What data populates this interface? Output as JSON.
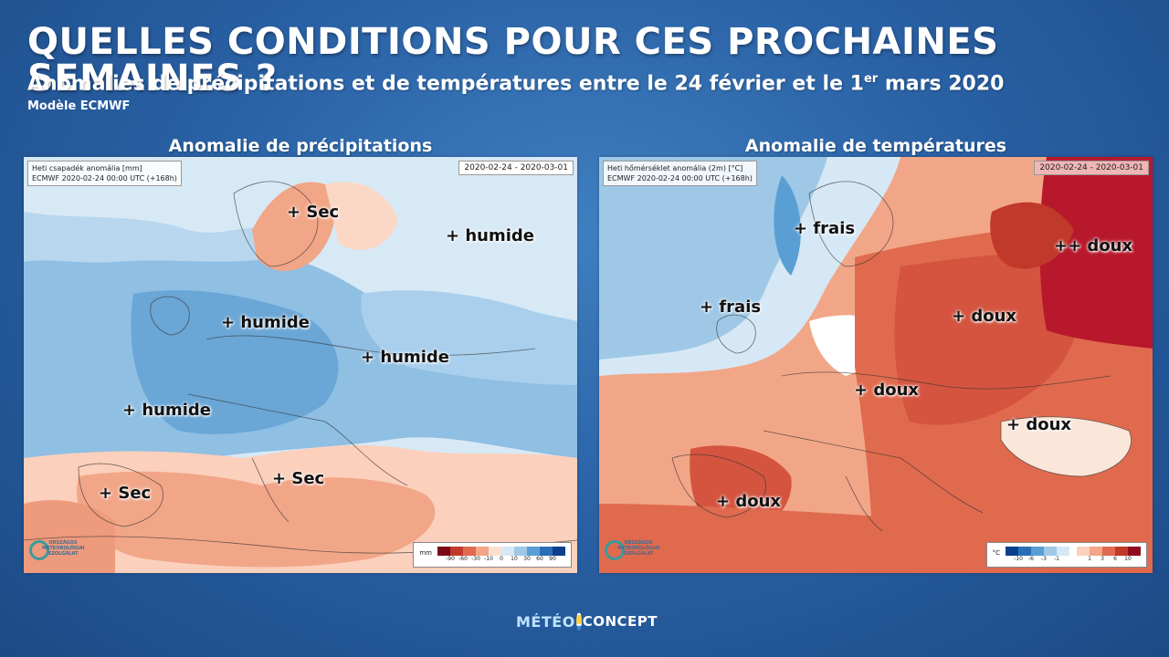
{
  "header": {
    "title": "QUELLES CONDITIONS POUR CES PROCHAINES SEMAINES ?",
    "subtitle_part1": "Anomalies de précipitations et de températures entre le 24 février et le 1",
    "subtitle_sup": "er",
    "subtitle_part2": " mars 2020",
    "model": "Modèle ECMWF"
  },
  "precip_panel": {
    "heading": "Anomalie de précipitations",
    "info_line1": "Heti csapadék anomália [mm]",
    "info_line2": "ECMWF 2020-02-24 00:00 UTC (+168h)",
    "date_range": "2020-02-24 - 2020-03-01",
    "legend_unit": "mm",
    "legend_ticks": [
      "-90",
      "-60",
      "-30",
      "-10",
      "0",
      "10",
      "30",
      "60",
      "90"
    ],
    "legend_colors": [
      "#7a0a1a",
      "#c0392b",
      "#e06a4e",
      "#f2a688",
      "#fbe0d2",
      "#d6e8f5",
      "#9ec8e6",
      "#5a9fd4",
      "#2a6fb5",
      "#0b3f8c"
    ],
    "labels": [
      "+ Sec",
      "+ humide",
      "+ humide",
      "+ humide",
      "+ humide",
      "+ Sec",
      "+ Sec"
    ]
  },
  "temp_panel": {
    "heading": "Anomalie de températures",
    "info_line1": "Heti hőmérséklet anomália (2m) [°C]",
    "info_line2": "ECMWF 2020-02-24 00:00 UTC (+168h)",
    "date_range": "2020-02-24 - 2020-03-01",
    "legend_unit": "°C",
    "legend_ticks_cold": [
      "-10",
      "-6",
      "-3",
      "-1"
    ],
    "legend_ticks_warm": [
      "1",
      "3",
      "6",
      "10"
    ],
    "legend_colors_cold": [
      "#0b3f8c",
      "#2a6fb5",
      "#5a9fd4",
      "#9ec8e6",
      "#d6e8f5"
    ],
    "legend_colors_warm": [
      "#fbd0bc",
      "#f2a688",
      "#e06a4e",
      "#c0392b",
      "#8e0b1f"
    ],
    "labels": [
      "+ frais",
      "+ frais",
      "++ doux",
      "+ doux",
      "+ doux",
      "+ doux",
      "+ doux"
    ]
  },
  "logos": {
    "omsz_text": "ORSZÁGOS METEOROLÓGIAI SZOLGÁLAT",
    "footer_part1": "MÉTÉO",
    "footer_part2": "CONCEPT"
  },
  "colors": {
    "bg_dark": "#1c4a86",
    "bg_light": "#3f7fc0",
    "wet": "#8fbfe3",
    "dry": "#f2a688",
    "warm": "#e06a4e",
    "hot": "#b8182c",
    "cold": "#9ec8e6"
  }
}
